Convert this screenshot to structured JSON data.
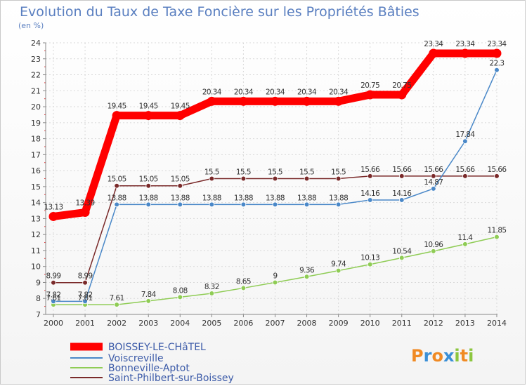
{
  "chart_data": {
    "type": "line",
    "title": "Evolution du Taux de Taxe Foncière sur les Propriétés Bâties",
    "unit_label": "(en %)",
    "x": [
      2000,
      2001,
      2002,
      2003,
      2004,
      2005,
      2006,
      2007,
      2008,
      2009,
      2010,
      2011,
      2012,
      2013,
      2014
    ],
    "ylim": [
      7,
      24
    ],
    "yticks": [
      7,
      8,
      9,
      10,
      11,
      12,
      13,
      14,
      15,
      16,
      17,
      18,
      19,
      20,
      21,
      22,
      23,
      24
    ],
    "grid": true,
    "legend_position": "bottom-left",
    "series": [
      {
        "name": "Saint-Philbert-sur-Boissey",
        "color": "#7a2a2a",
        "values": [
          8.99,
          8.99,
          15.05,
          15.05,
          15.05,
          15.5,
          15.5,
          15.5,
          15.5,
          15.5,
          15.66,
          15.66,
          15.66,
          15.66,
          15.66
        ],
        "labels": [
          "8.99",
          "8.99",
          "15.05",
          "15.05",
          "15.05",
          "15.5",
          "15.5",
          "15.5",
          "15.5",
          "15.5",
          "15.66",
          "15.66",
          "15.66",
          "15.66",
          "15.66"
        ]
      },
      {
        "name": "Bonneville-Aptot",
        "color": "#8fcc55",
        "values": [
          7.61,
          7.61,
          7.61,
          7.84,
          8.08,
          8.32,
          8.65,
          9,
          9.36,
          9.74,
          10.13,
          10.54,
          10.96,
          11.4,
          11.85
        ],
        "labels": [
          "7.61",
          "7.61",
          "7.61",
          "7.84",
          "8.08",
          "8.32",
          "8.65",
          "9",
          "9.36",
          "9.74",
          "10.13",
          "10.54",
          "10.96",
          "11.4",
          "11.85"
        ]
      },
      {
        "name": "Voiscreville",
        "color": "#4a88c8",
        "values": [
          7.82,
          7.82,
          13.88,
          13.88,
          13.88,
          13.88,
          13.88,
          13.88,
          13.88,
          13.88,
          14.16,
          14.16,
          14.87,
          17.84,
          22.3
        ],
        "labels": [
          "7.82",
          "7.82",
          "13.88",
          "13.88",
          "13.88",
          "13.88",
          "13.88",
          "13.88",
          "13.88",
          "13.88",
          "14.16",
          "14.16",
          "14.87",
          "17.84",
          "22.3"
        ]
      },
      {
        "name": "BOISSEY-LE-CHâTEL",
        "color": "#ff0000",
        "values": [
          13.13,
          13.39,
          19.45,
          19.45,
          19.45,
          20.34,
          20.34,
          20.34,
          20.34,
          20.34,
          20.75,
          20.75,
          23.34,
          23.34,
          23.34
        ],
        "labels": [
          "13.13",
          "13.39",
          "19.45",
          "19.45",
          "19.45",
          "20.34",
          "20.34",
          "20.34",
          "20.34",
          "20.34",
          "20.75",
          "20.75",
          "23.34",
          "23.34",
          "23.34"
        ]
      }
    ],
    "legend": [
      "BOISSEY-LE-CHâTEL",
      "Voiscreville",
      "Bonneville-Aptot",
      "Saint-Philbert-sur-Boissey"
    ]
  },
  "brand": {
    "letters": [
      "P",
      "r",
      "o",
      "x",
      "i",
      "t",
      "i"
    ],
    "colors": [
      "#f08a24",
      "#3a8fd6",
      "#f08a24",
      "#3a8fd6",
      "#8cc63f",
      "#f08a24",
      "#8cc63f"
    ]
  }
}
